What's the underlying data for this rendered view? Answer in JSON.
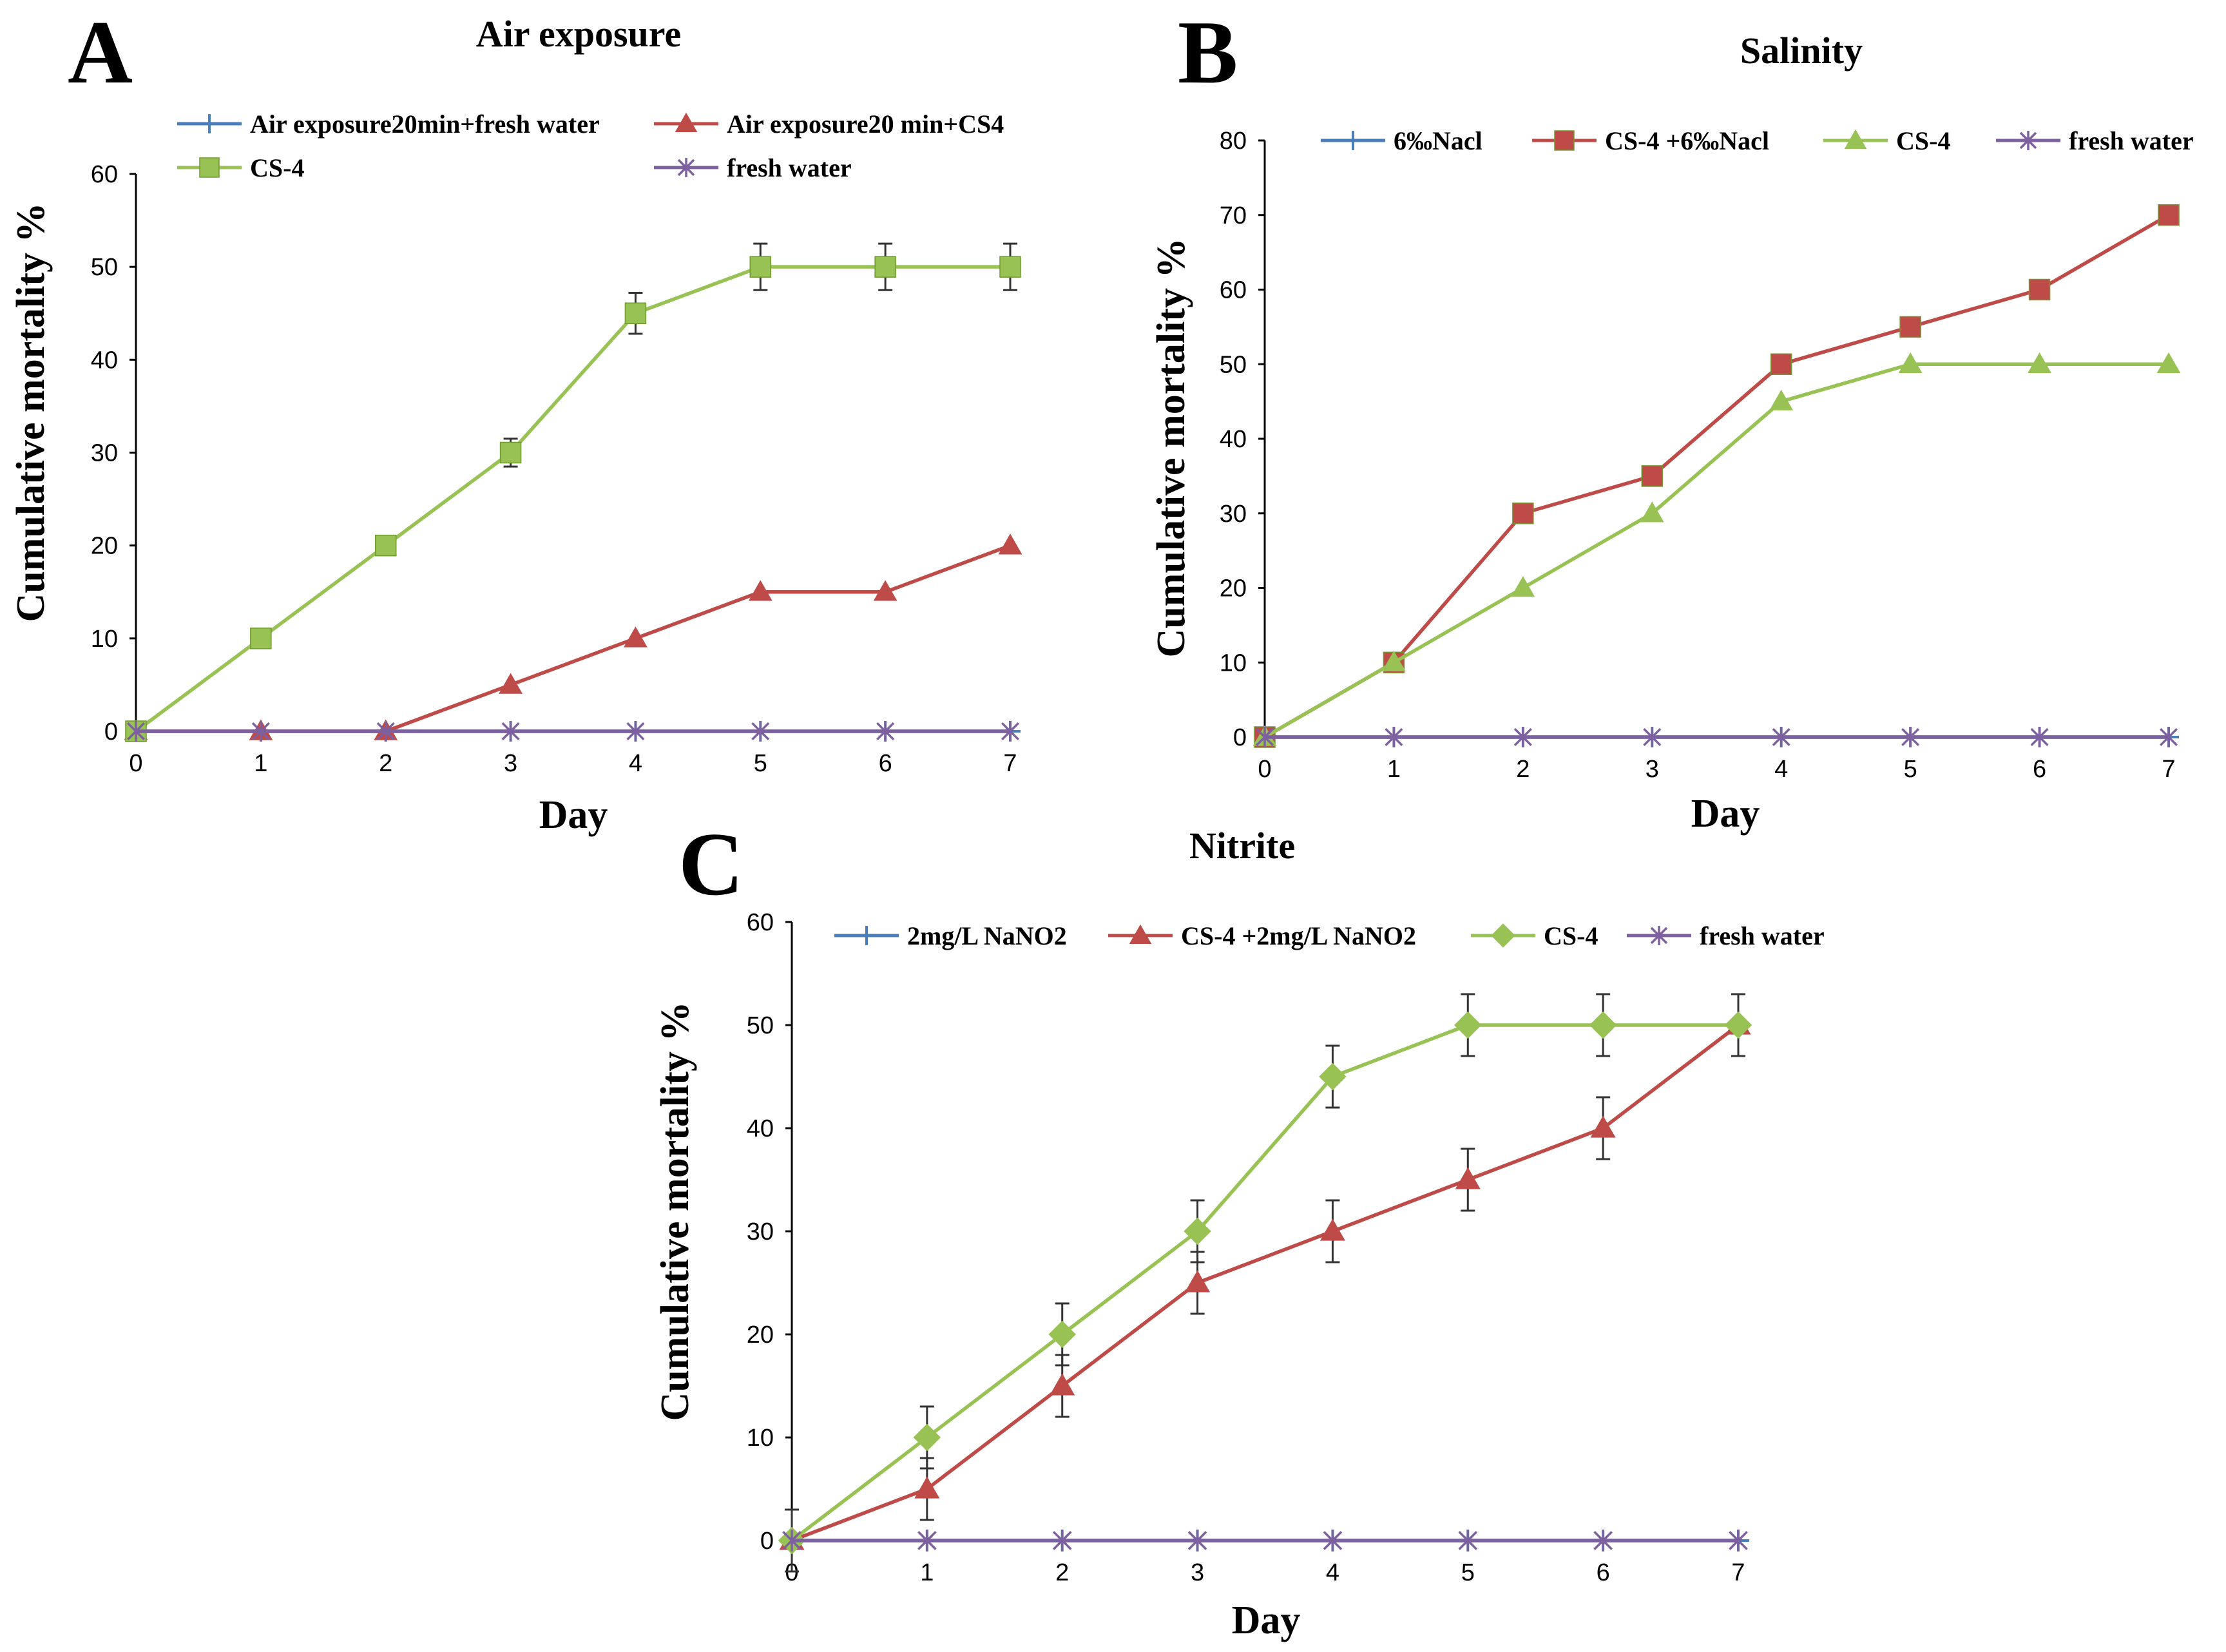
{
  "chart_data": [
    {
      "type": "line",
      "panel": "A",
      "title": "Air exposure",
      "xlabel": "Day",
      "ylabel": "Cumulative mortality %",
      "x": [
        0,
        1,
        2,
        3,
        4,
        5,
        6,
        7
      ],
      "xlim": [
        0,
        7
      ],
      "ylim": [
        0,
        60
      ],
      "xticks": [
        "0",
        "1",
        "2",
        "3",
        "4",
        "5",
        "6",
        "7"
      ],
      "yticks": [
        "0",
        "10",
        "20",
        "30",
        "40",
        "50",
        "60"
      ],
      "grid": false,
      "legend_position": "top",
      "series": [
        {
          "name": "Air exposure20min+fresh water",
          "values": [
            0,
            0,
            0,
            0,
            0,
            0,
            0,
            0
          ],
          "color": "#4a7ebb",
          "marker": "plus",
          "errors": null
        },
        {
          "name": "Air exposure20 min+CS4",
          "values": [
            0,
            0,
            0,
            5,
            10,
            15,
            15,
            20
          ],
          "color": "#be4b48",
          "marker": "triangle",
          "errors": null
        },
        {
          "name": "CS-4",
          "values": [
            0,
            10,
            20,
            30,
            45,
            50,
            50,
            50
          ],
          "color": "#98c253",
          "marker": "square",
          "errors": [
            0,
            0,
            1,
            1.5,
            2.2,
            2.5,
            2.5,
            2.5
          ]
        },
        {
          "name": "fresh water",
          "values": [
            0,
            0,
            0,
            0,
            0,
            0,
            0,
            0
          ],
          "color": "#7d60a0",
          "marker": "asterisk",
          "errors": null
        }
      ]
    },
    {
      "type": "line",
      "panel": "B",
      "title": "Salinity",
      "xlabel": "Day",
      "ylabel": "Cumulative mortality %",
      "x": [
        0,
        1,
        2,
        3,
        4,
        5,
        6,
        7
      ],
      "xlim": [
        0,
        7
      ],
      "ylim": [
        0,
        80
      ],
      "xticks": [
        "0",
        "1",
        "2",
        "3",
        "4",
        "5",
        "6",
        "7"
      ],
      "yticks": [
        "0",
        "10",
        "20",
        "30",
        "40",
        "50",
        "60",
        "70",
        "80"
      ],
      "grid": false,
      "legend_position": "top",
      "series": [
        {
          "name": "6‰Nacl",
          "values": [
            0,
            0,
            0,
            0,
            0,
            0,
            0,
            0
          ],
          "color": "#4a7ebb",
          "marker": "plus",
          "errors": null
        },
        {
          "name": "CS-4 +6‰Nacl",
          "values": [
            0,
            10,
            30,
            35,
            50,
            55,
            60,
            70
          ],
          "color": "#be4b48",
          "marker": "square",
          "errors": null
        },
        {
          "name": "CS-4",
          "values": [
            0,
            10,
            20,
            30,
            45,
            50,
            50,
            50
          ],
          "color": "#98c253",
          "marker": "triangle",
          "errors": null
        },
        {
          "name": "fresh water",
          "values": [
            0,
            0,
            0,
            0,
            0,
            0,
            0,
            0
          ],
          "color": "#7d60a0",
          "marker": "asterisk",
          "errors": null
        }
      ]
    },
    {
      "type": "line",
      "panel": "C",
      "title": "Nitrite",
      "xlabel": "Day",
      "ylabel": "Cumulative mortality %",
      "x": [
        0,
        1,
        2,
        3,
        4,
        5,
        6,
        7
      ],
      "xlim": [
        0,
        7
      ],
      "ylim": [
        0,
        60
      ],
      "xticks": [
        "0",
        "1",
        "2",
        "3",
        "4",
        "5",
        "6",
        "7"
      ],
      "yticks": [
        "0",
        "10",
        "20",
        "30",
        "40",
        "50",
        "60"
      ],
      "grid": false,
      "legend_position": "top",
      "series": [
        {
          "name": "2mg/L NaNO2",
          "values": [
            0,
            0,
            0,
            0,
            0,
            0,
            0,
            0
          ],
          "color": "#4a7ebb",
          "marker": "plus",
          "errors": [
            3,
            0,
            0,
            0,
            0,
            0,
            0,
            0
          ]
        },
        {
          "name": "CS-4 +2mg/L NaNO2",
          "values": [
            0,
            5,
            15,
            25,
            30,
            35,
            40,
            50
          ],
          "color": "#be4b48",
          "marker": "triangle",
          "errors": [
            0,
            3,
            3,
            3,
            3,
            3,
            3,
            3
          ]
        },
        {
          "name": "CS-4",
          "values": [
            0,
            10,
            20,
            30,
            45,
            50,
            50,
            50
          ],
          "color": "#98c253",
          "marker": "diamond",
          "errors": [
            0,
            3,
            3,
            3,
            3,
            3,
            3,
            3
          ]
        },
        {
          "name": "fresh water",
          "values": [
            0,
            0,
            0,
            0,
            0,
            0,
            0,
            0
          ],
          "color": "#7d60a0",
          "marker": "asterisk",
          "errors": null
        }
      ]
    }
  ]
}
